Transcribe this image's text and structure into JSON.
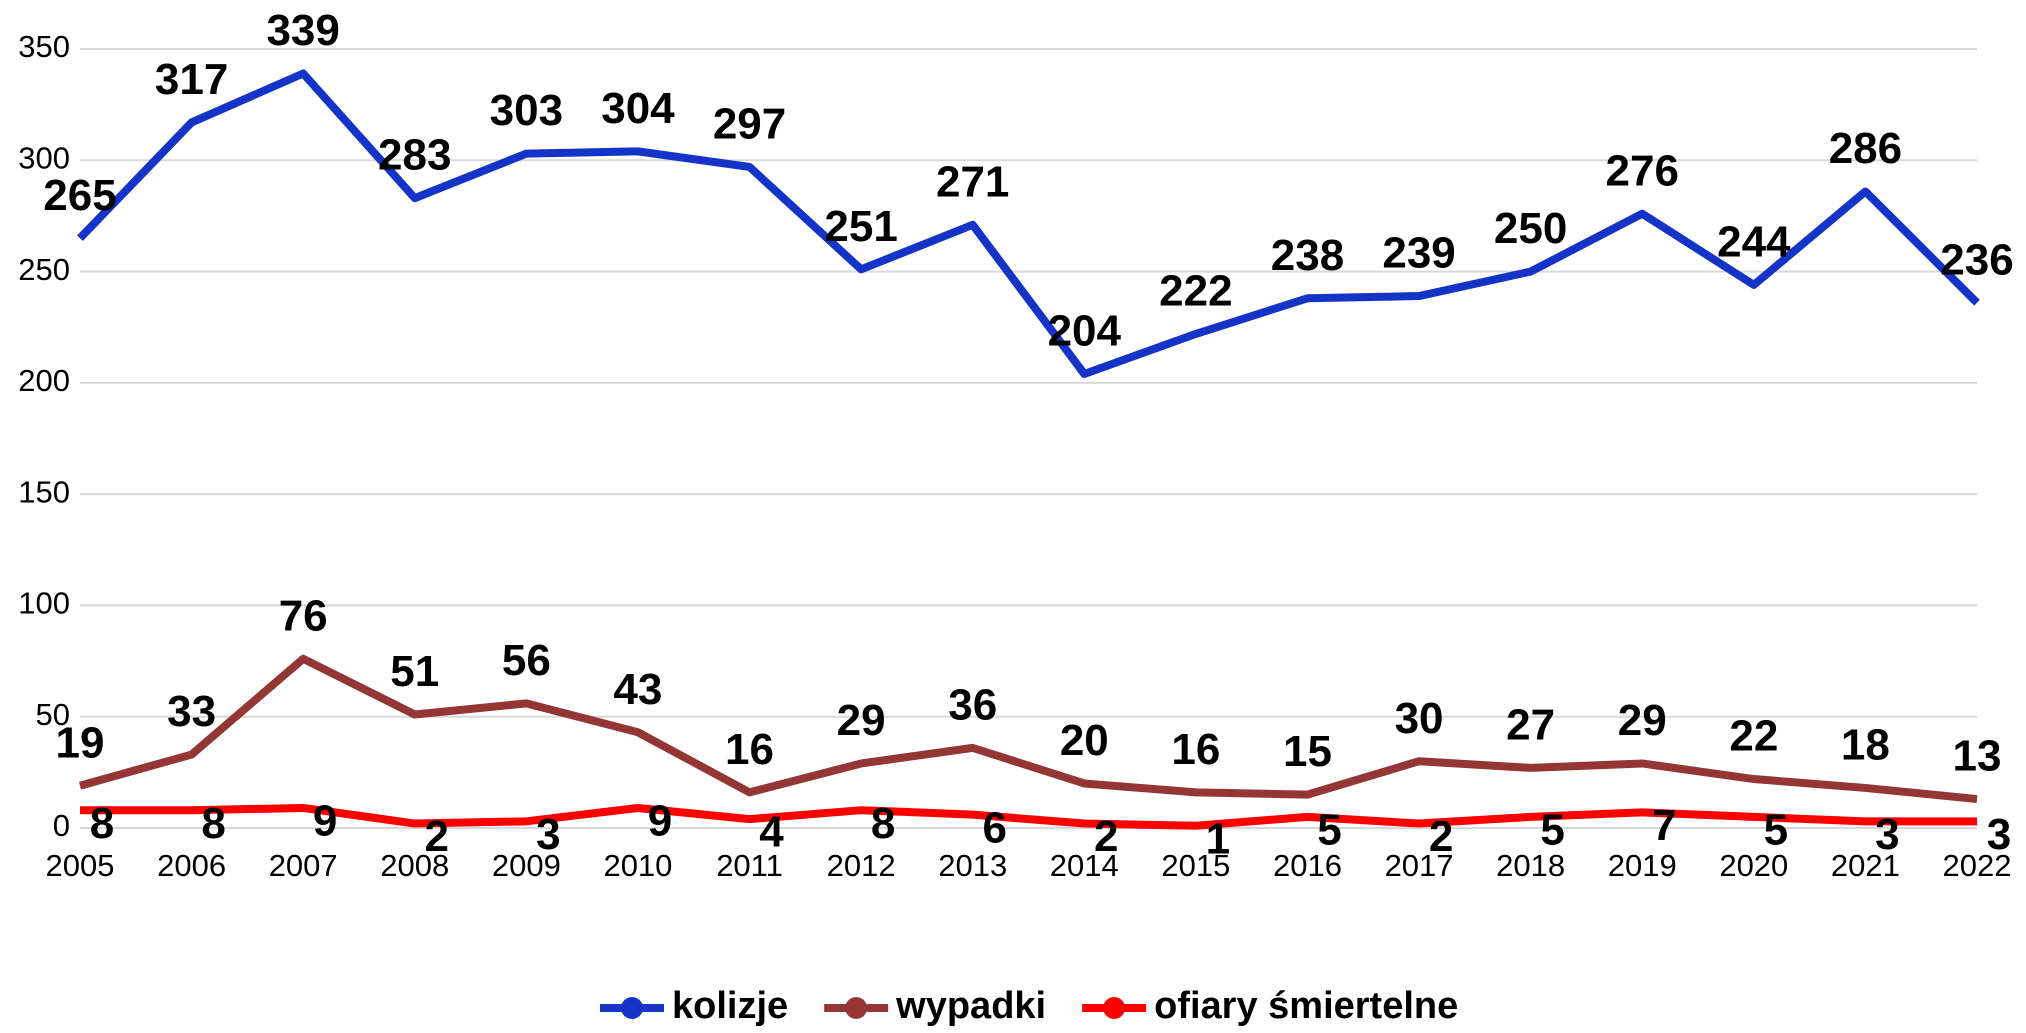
{
  "chart_data": {
    "type": "line",
    "categories": [
      "2005",
      "2006",
      "2007",
      "2008",
      "2009",
      "2010",
      "2011",
      "2012",
      "2013",
      "2014",
      "2015",
      "2016",
      "2017",
      "2018",
      "2019",
      "2020",
      "2021",
      "2022"
    ],
    "series": [
      {
        "name": "kolizje",
        "color": "#1434c8",
        "values": [
          265,
          317,
          339,
          283,
          303,
          304,
          297,
          251,
          271,
          204,
          222,
          238,
          239,
          250,
          276,
          244,
          286,
          236
        ]
      },
      {
        "name": "wypadki",
        "color": "#943634",
        "values": [
          19,
          33,
          76,
          51,
          56,
          43,
          16,
          29,
          36,
          20,
          16,
          15,
          30,
          27,
          29,
          22,
          18,
          13
        ]
      },
      {
        "name": "ofiary śmiertelne",
        "color": "#ff0000",
        "values": [
          8,
          8,
          9,
          2,
          3,
          9,
          4,
          8,
          6,
          2,
          1,
          5,
          2,
          5,
          7,
          5,
          3,
          3
        ]
      }
    ],
    "ylim": [
      0,
      350
    ],
    "yticks": [
      0,
      50,
      100,
      150,
      200,
      250,
      300,
      350
    ],
    "grid": true,
    "legend": "bottom"
  }
}
